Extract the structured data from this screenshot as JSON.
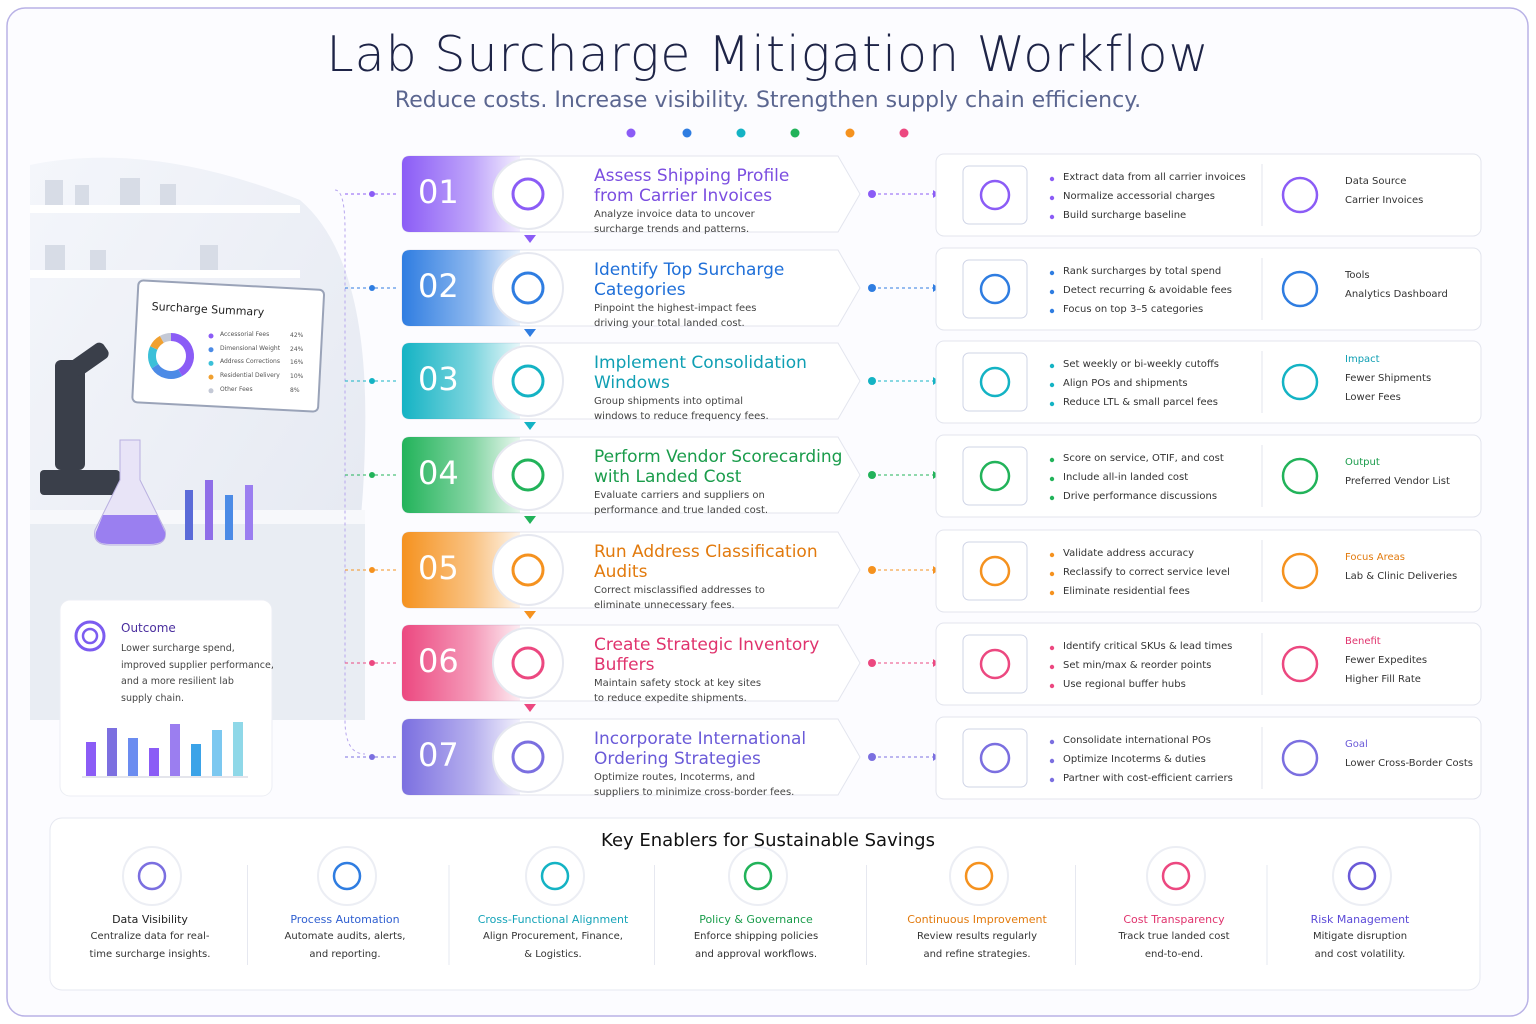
{
  "header": {
    "title": "Lab Surcharge Mitigation Workflow",
    "subtitle": "Reduce costs. Increase visibility. Strengthen supply chain efficiency."
  },
  "summary": {
    "title": "Surcharge Summary",
    "items": [
      {
        "label": "Accessorial Fees",
        "value": 42,
        "value_label": "42%"
      },
      {
        "label": "Dimensional Weight",
        "value": 24,
        "value_label": "24%"
      },
      {
        "label": "Address Corrections",
        "value": 16,
        "value_label": "16%"
      },
      {
        "label": "Residential Delivery",
        "value": 10,
        "value_label": "10%"
      },
      {
        "label": "Other Fees",
        "value": 8,
        "value_label": "8%"
      }
    ]
  },
  "outcome": {
    "title": "Outcome",
    "lines": [
      "Lower surcharge spend,",
      "improved supplier performance,",
      "and a more resilient lab",
      "supply chain."
    ]
  },
  "steps": [
    {
      "number": "01",
      "title": [
        "Assess Shipping Profile",
        "from Carrier Invoices"
      ],
      "description": [
        "Analyze invoice data to uncover",
        "surcharge trends and patterns."
      ],
      "bullets": [
        "Extract data from all carrier invoices",
        "Normalize accessorial charges",
        "Build surcharge baseline"
      ],
      "side": {
        "label": "Data Source",
        "lines": [
          "Carrier Invoices"
        ]
      }
    },
    {
      "number": "02",
      "title": [
        "Identify Top Surcharge",
        "Categories"
      ],
      "description": [
        "Pinpoint the highest-impact fees",
        "driving your total landed cost."
      ],
      "bullets": [
        "Rank surcharges by total spend",
        "Detect recurring & avoidable fees",
        "Focus on top 3–5 categories"
      ],
      "side": {
        "label": "Tools",
        "lines": [
          "Analytics Dashboard"
        ]
      }
    },
    {
      "number": "03",
      "title": [
        "Implement Consolidation",
        "Windows"
      ],
      "description": [
        "Group shipments into optimal",
        "windows to reduce frequency fees."
      ],
      "bullets": [
        "Set weekly or bi-weekly cutoffs",
        "Align POs and shipments",
        "Reduce LTL & small parcel fees"
      ],
      "side": {
        "label": "Impact",
        "lines": [
          "Fewer Shipments",
          "Lower Fees"
        ]
      }
    },
    {
      "number": "04",
      "title": [
        "Perform Vendor Scorecarding",
        "with Landed Cost"
      ],
      "description": [
        "Evaluate carriers and suppliers on",
        "performance and true landed cost."
      ],
      "bullets": [
        "Score on service, OTIF, and cost",
        "Include all-in landed cost",
        "Drive performance discussions"
      ],
      "side": {
        "label": "Output",
        "lines": [
          "Preferred Vendor List"
        ]
      }
    },
    {
      "number": "05",
      "title": [
        "Run Address Classification",
        "Audits"
      ],
      "description": [
        "Correct misclassified addresses to",
        "eliminate unnecessary fees."
      ],
      "bullets": [
        "Validate address accuracy",
        "Reclassify to correct service level",
        "Eliminate residential fees"
      ],
      "side": {
        "label": "Focus Areas",
        "lines": [
          "Lab & Clinic Deliveries"
        ]
      }
    },
    {
      "number": "06",
      "title": [
        "Create Strategic Inventory",
        "Buffers"
      ],
      "description": [
        "Maintain safety stock at key sites",
        "to reduce expedite shipments."
      ],
      "bullets": [
        "Identify critical SKUs & lead times",
        "Set min/max & reorder points",
        "Use regional buffer hubs"
      ],
      "side": {
        "label": "Benefit",
        "lines": [
          "Fewer Expedites",
          "Higher Fill Rate"
        ]
      }
    },
    {
      "number": "07",
      "title": [
        "Incorporate International",
        "Ordering Strategies"
      ],
      "description": [
        "Optimize routes, Incoterms, and",
        "suppliers to minimize cross-border fees."
      ],
      "bullets": [
        "Consolidate international POs",
        "Optimize Incoterms & duties",
        "Partner with cost-efficient carriers"
      ],
      "side": {
        "label": "Goal",
        "lines": [
          "Lower Cross-Border Costs"
        ]
      }
    }
  ],
  "enablers": {
    "title": "Key Enablers for Sustainable Savings",
    "items": [
      {
        "name": "Data Visibility",
        "description": [
          "Centralize data for real-",
          "time surcharge insights."
        ]
      },
      {
        "name": "Process Automation",
        "description": [
          "Automate audits, alerts,",
          "and reporting."
        ]
      },
      {
        "name": "Cross-Functional Alignment",
        "description": [
          "Align Procurement, Finance,",
          "& Logistics."
        ]
      },
      {
        "name": "Policy & Governance",
        "description": [
          "Enforce shipping policies",
          "and approval workflows."
        ]
      },
      {
        "name": "Continuous Improvement",
        "description": [
          "Review results regularly",
          "and refine strategies."
        ]
      },
      {
        "name": "Cost Transparency",
        "description": [
          "Track true landed cost",
          "end-to-end."
        ]
      },
      {
        "name": "Risk Management",
        "description": [
          "Mitigate disruption",
          "and cost volatility."
        ]
      }
    ]
  }
}
